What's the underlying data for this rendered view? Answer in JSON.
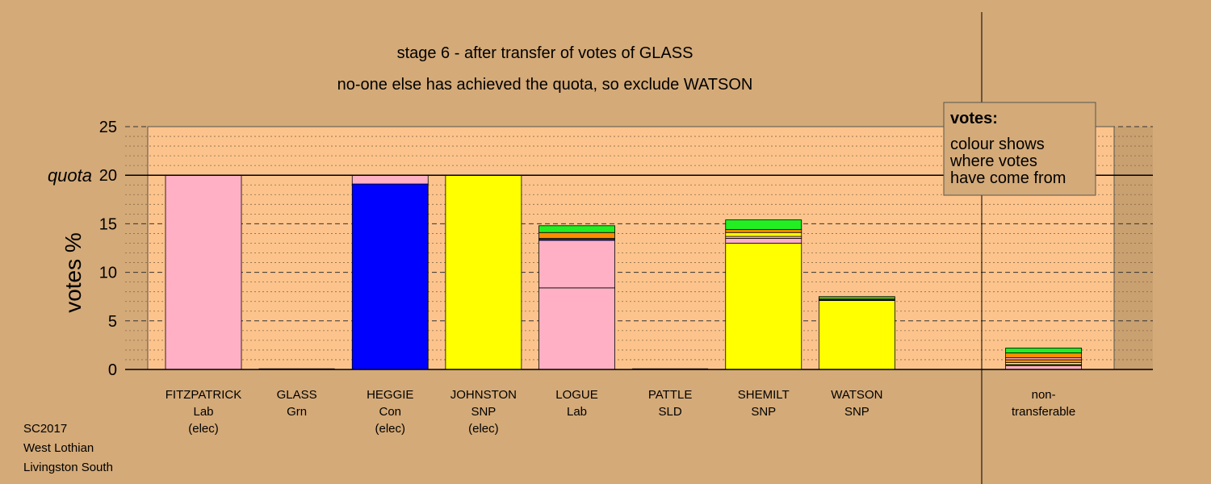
{
  "chart_data": {
    "type": "bar",
    "title": "stage 6 - after transfer of votes of GLASS",
    "subtitle": "no-one else has achieved the quota, so exclude WATSON",
    "ylabel": "votes %",
    "ylim": [
      0,
      25
    ],
    "yticks": [
      0,
      5,
      10,
      15,
      20,
      25
    ],
    "quota_value": 20,
    "quota_label": "quota",
    "grid": true,
    "legend": {
      "position": "top-right",
      "title": "votes:",
      "lines": [
        "colour shows",
        "where votes",
        "have come from"
      ]
    },
    "party_colors": {
      "Lab": "#ffb0c4",
      "Con": "#0000ff",
      "SNP": "#ffff00",
      "Grn": "#22ee22",
      "SLD": "#ff8c00"
    },
    "categories": [
      {
        "name": "FITZPATRICK",
        "party": "Lab",
        "status": "(elec)",
        "segments": [
          {
            "from": "Lab",
            "value": 20.0
          }
        ]
      },
      {
        "name": "GLASS",
        "party": "Grn",
        "status": "",
        "segments": []
      },
      {
        "name": "HEGGIE",
        "party": "Con",
        "status": "(elec)",
        "segments": [
          {
            "from": "Con",
            "value": 19.1
          },
          {
            "from": "Lab",
            "value": 0.9
          }
        ]
      },
      {
        "name": "JOHNSTON",
        "party": "SNP",
        "status": "(elec)",
        "segments": [
          {
            "from": "SNP",
            "value": 20.0
          }
        ]
      },
      {
        "name": "LOGUE",
        "party": "Lab",
        "status": "",
        "segments": [
          {
            "from": "Lab",
            "value": 8.4
          },
          {
            "from": "Lab",
            "value": 4.9
          },
          {
            "from": "Con",
            "value": 0.1
          },
          {
            "from": "SNP",
            "value": 0.1
          },
          {
            "from": "SLD",
            "value": 0.6
          },
          {
            "from": "Grn",
            "value": 0.7
          }
        ]
      },
      {
        "name": "PATTLE",
        "party": "SLD",
        "status": "",
        "segments": []
      },
      {
        "name": "SHEMILT",
        "party": "SNP",
        "status": "",
        "segments": [
          {
            "from": "SNP",
            "value": 13.0
          },
          {
            "from": "Lab",
            "value": 0.5
          },
          {
            "from": "Lab",
            "value": 0.2
          },
          {
            "from": "SNP",
            "value": 0.4
          },
          {
            "from": "SLD",
            "value": 0.3
          },
          {
            "from": "Grn",
            "value": 1.0
          }
        ]
      },
      {
        "name": "WATSON",
        "party": "SNP",
        "status": "",
        "segments": [
          {
            "from": "SNP",
            "value": 7.1
          },
          {
            "from": "Con",
            "value": 0.1
          },
          {
            "from": "SNP",
            "value": 0.1
          },
          {
            "from": "Grn",
            "value": 0.2
          }
        ]
      },
      {
        "name": "",
        "party": "",
        "status": "",
        "segments": []
      },
      {
        "name": "non-",
        "party": "transferable",
        "status": "",
        "segments": [
          {
            "from": "Lab",
            "value": 0.4
          },
          {
            "from": "Con",
            "value": 0.1
          },
          {
            "from": "SNP",
            "value": 0.2
          },
          {
            "from": "SLD",
            "value": 0.3
          },
          {
            "from": "Lab",
            "value": 0.2
          },
          {
            "from": "SLD",
            "value": 0.5
          },
          {
            "from": "Grn",
            "value": 0.5
          }
        ]
      }
    ]
  },
  "footer": {
    "lines": [
      "SC2017",
      "West Lothian",
      "Livingston South"
    ]
  }
}
